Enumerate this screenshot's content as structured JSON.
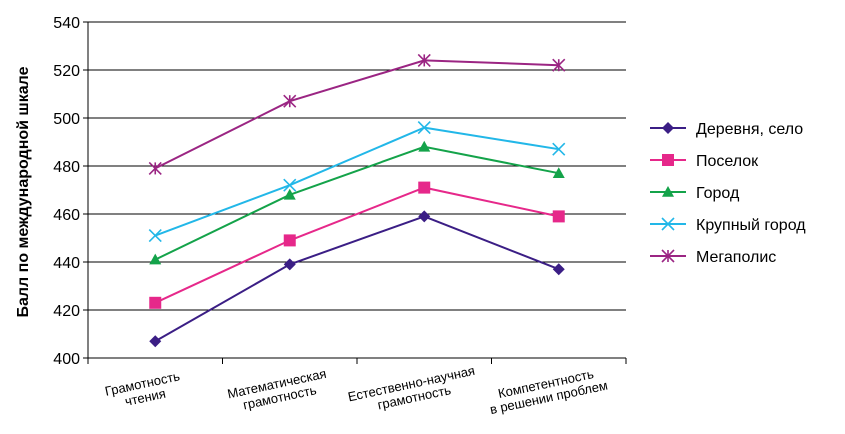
{
  "chart_data": {
    "type": "line",
    "categories": [
      [
        "Грамотность",
        "чтения"
      ],
      [
        "Математическая",
        "грамотность"
      ],
      [
        "Естественно-научная",
        "грамотность"
      ],
      [
        "Компетентность",
        "в решении проблем"
      ]
    ],
    "ylabel": "Балл по международной шкале",
    "ylim": [
      400,
      540
    ],
    "yticks": [
      400,
      420,
      440,
      460,
      480,
      500,
      520,
      540
    ],
    "grid": true,
    "legend_position": "right",
    "series": [
      {
        "name": "Деревня, село",
        "values": [
          407,
          439,
          459,
          437
        ],
        "color": "#3b1e85",
        "marker": "diamond"
      },
      {
        "name": "Поселок",
        "values": [
          423,
          449,
          471,
          459
        ],
        "color": "#e6288a",
        "marker": "square"
      },
      {
        "name": "Город",
        "values": [
          441,
          468,
          488,
          477
        ],
        "color": "#14a34a",
        "marker": "triangle"
      },
      {
        "name": "Крупный город",
        "values": [
          451,
          472,
          496,
          487
        ],
        "color": "#22b7e8",
        "marker": "x"
      },
      {
        "name": "Мегаполис",
        "values": [
          479,
          507,
          524,
          522
        ],
        "color": "#9b2583",
        "marker": "asterisk"
      }
    ]
  }
}
